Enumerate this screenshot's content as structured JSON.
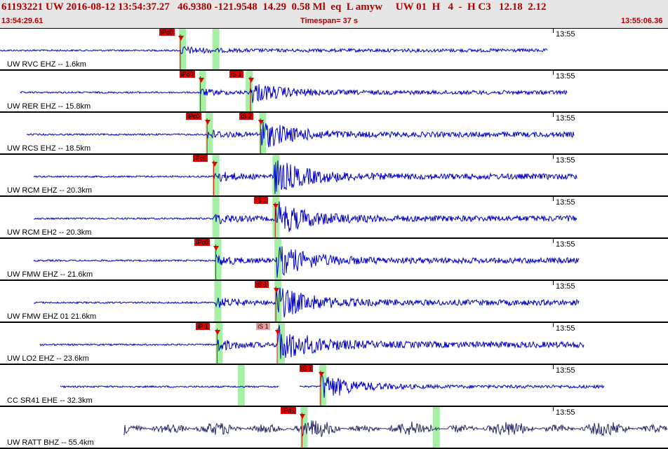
{
  "header": {
    "summary": "61193221 UW 2016-08-12 13:54:37.27   46.9380 -121.9548  14.29  0.58 Ml  eq  L amyw     UW 01  H   4  -  H C3   12.18  2.12",
    "start_time": "13:54:29.61",
    "timespan": "Timespan=  37 s",
    "end_time": "13:55:06.36"
  },
  "colors": {
    "trace": "#0000cc",
    "trace_last": "#2a2a6a",
    "pick": "#e00000",
    "pick_light": "#f4a0a0",
    "window": "#a6f0a6",
    "header_bg": "#e6e6e6",
    "header_text": "#b00000"
  },
  "panels": [
    {
      "label": "UW RVC EHZ -- 1.6km",
      "time": "13:55",
      "picks": [
        {
          "text": "iPc0",
          "style": "red",
          "t": 0.27
        }
      ],
      "windows": [
        0.27,
        0.32
      ],
      "onset": 0.27,
      "s_onset": null,
      "start": 0.0,
      "end": 0.82,
      "amp": 0.3,
      "dark": false,
      "gap": null
    },
    {
      "label": "UW RER EHZ -- 15.8km",
      "time": "13:55",
      "picks": [
        {
          "text": "iPd0",
          "style": "red",
          "t": 0.3
        },
        {
          "text": "iS 1",
          "style": "red",
          "t": 0.375
        }
      ],
      "windows": [
        0.3,
        0.37
      ],
      "onset": 0.3,
      "s_onset": 0.375,
      "start": 0.03,
      "end": 0.85,
      "amp": 0.25,
      "dark": false,
      "gap": null
    },
    {
      "label": "UW RCS EHZ -- 18.5km",
      "time": "13:55",
      "picks": [
        {
          "text": "iPc0",
          "style": "red",
          "t": 0.31
        },
        {
          "text": "iS 2",
          "style": "red",
          "t": 0.39
        }
      ],
      "windows": [
        0.31,
        0.39
      ],
      "onset": 0.31,
      "s_onset": 0.39,
      "start": 0.04,
      "end": 0.86,
      "amp": 0.35,
      "dark": false,
      "gap": null
    },
    {
      "label": "UW RCM EHZ -- 20.3km",
      "time": "13:55",
      "picks": [
        {
          "text": "iPc0",
          "style": "red",
          "t": 0.32
        }
      ],
      "windows": [
        0.32,
        0.41
      ],
      "onset": 0.32,
      "s_onset": 0.41,
      "start": 0.05,
      "end": 0.865,
      "amp": 0.42,
      "dark": false,
      "gap": null
    },
    {
      "label": "UW RCM EH2 -- 20.3km",
      "time": "13:55",
      "picks": [
        {
          "text": "iS 1",
          "style": "red",
          "t": 0.412
        }
      ],
      "windows": [
        0.32,
        0.41
      ],
      "onset": 0.32,
      "s_onset": 0.412,
      "start": 0.05,
      "end": 0.865,
      "amp": 0.42,
      "dark": false,
      "gap": null
    },
    {
      "label": "UW FMW EHZ -- 21.6km",
      "time": "13:55",
      "picks": [
        {
          "text": "iPc0",
          "style": "red",
          "t": 0.323
        }
      ],
      "windows": [
        0.323,
        0.413
      ],
      "onset": 0.323,
      "s_onset": 0.413,
      "start": 0.05,
      "end": 0.868,
      "amp": 0.4,
      "dark": false,
      "gap": null
    },
    {
      "label": "UW FMW EHZ 01 21.6km",
      "time": "13:55",
      "picks": [
        {
          "text": "iS 1",
          "style": "red",
          "t": 0.413
        }
      ],
      "windows": [
        0.323,
        0.413
      ],
      "onset": 0.323,
      "s_onset": 0.413,
      "start": 0.05,
      "end": 0.868,
      "amp": 0.4,
      "dark": false,
      "gap": null
    },
    {
      "label": "UW LO2 EHZ -- 23.6km",
      "time": "13:55",
      "picks": [
        {
          "text": "iP 1",
          "style": "red",
          "t": 0.325
        },
        {
          "text": "iS 1",
          "style": "pink",
          "t": 0.415
        }
      ],
      "windows": [
        0.325,
        0.418
      ],
      "onset": 0.325,
      "s_onset": 0.415,
      "start": 0.06,
      "end": 0.875,
      "amp": 0.45,
      "dark": false,
      "gap": null
    },
    {
      "label": "CC SR41 EHE -- 32.3km",
      "time": "13:55",
      "picks": [
        {
          "text": "iS 1",
          "style": "red",
          "t": 0.48
        }
      ],
      "windows": [
        0.358,
        0.48
      ],
      "onset": null,
      "s_onset": 0.48,
      "start": 0.09,
      "end": 0.905,
      "amp": 0.35,
      "dark": false,
      "gap": [
        0.418,
        0.448
      ]
    },
    {
      "label": "UW RATT BHZ -- 55.4km",
      "time": "13:55",
      "picks": [
        {
          "text": "iPd1",
          "style": "red",
          "t": 0.452
        }
      ],
      "windows": [
        0.452,
        0.65
      ],
      "onset": 0.452,
      "s_onset": null,
      "start": 0.185,
      "end": 1.0,
      "amp": 0.3,
      "dark": true,
      "gap": null
    }
  ]
}
